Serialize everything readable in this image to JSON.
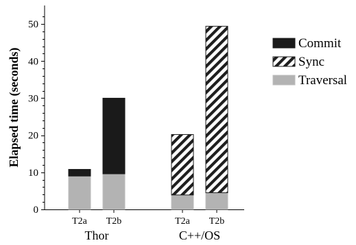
{
  "chart_data": {
    "type": "bar",
    "stacked": true,
    "ylabel": "Elapsed time (seconds)",
    "ylim": [
      0,
      55
    ],
    "yticks": [
      0,
      10,
      20,
      30,
      40,
      50
    ],
    "groups": [
      {
        "name": "Thor",
        "bars": [
          "T2a",
          "T2b"
        ]
      },
      {
        "name": "C++/OS",
        "bars": [
          "T2a",
          "T2b"
        ]
      }
    ],
    "categories": [
      "T2a",
      "T2b",
      "T2a",
      "T2b"
    ],
    "series": [
      {
        "name": "Traversal",
        "values": [
          9.0,
          9.6,
          3.9,
          4.5
        ],
        "color": "#b3b3b3",
        "pattern": "solid"
      },
      {
        "name": "Sync",
        "values": [
          0,
          0,
          16.3,
          44.9
        ],
        "color": "#222222",
        "pattern": "diagonal-hatch"
      },
      {
        "name": "Commit",
        "values": [
          1.8,
          20.4,
          0,
          0
        ],
        "color": "#1a1a1a",
        "pattern": "solid"
      }
    ],
    "legend": {
      "position": "right",
      "order": [
        "Commit",
        "Sync",
        "Traversal"
      ]
    },
    "grid": false
  }
}
